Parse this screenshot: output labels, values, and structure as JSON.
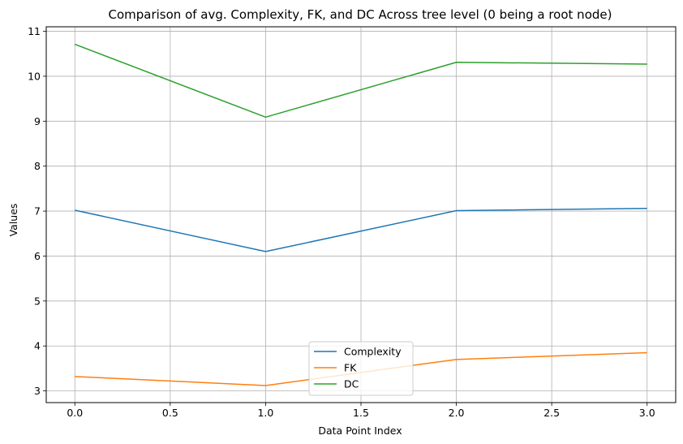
{
  "chart_data": {
    "type": "line",
    "title": "Comparison of avg. Complexity, FK, and DC Across tree level (0 being a root node)",
    "xlabel": "Data Point Index",
    "ylabel": "Values",
    "x": [
      0,
      1,
      2,
      3
    ],
    "xlim": [
      -0.15,
      3.15
    ],
    "ylim": [
      2.74,
      11.1
    ],
    "xticks": [
      0.0,
      0.5,
      1.0,
      1.5,
      2.0,
      2.5,
      3.0
    ],
    "xtick_labels": [
      "0.0",
      "0.5",
      "1.0",
      "1.5",
      "2.0",
      "2.5",
      "3.0"
    ],
    "yticks": [
      3,
      4,
      5,
      6,
      7,
      8,
      9,
      10,
      11
    ],
    "ytick_labels": [
      "3",
      "4",
      "5",
      "6",
      "7",
      "8",
      "9",
      "10",
      "11"
    ],
    "grid": true,
    "legend_position": "lower-center",
    "series": [
      {
        "name": "Complexity",
        "color": "#1f77b4",
        "values": [
          7.02,
          6.1,
          7.01,
          7.06
        ]
      },
      {
        "name": "FK",
        "color": "#ff7f0e",
        "values": [
          3.32,
          3.12,
          3.7,
          3.85
        ]
      },
      {
        "name": "DC",
        "color": "#2ca02c",
        "values": [
          10.71,
          9.09,
          10.31,
          10.27
        ]
      }
    ]
  }
}
